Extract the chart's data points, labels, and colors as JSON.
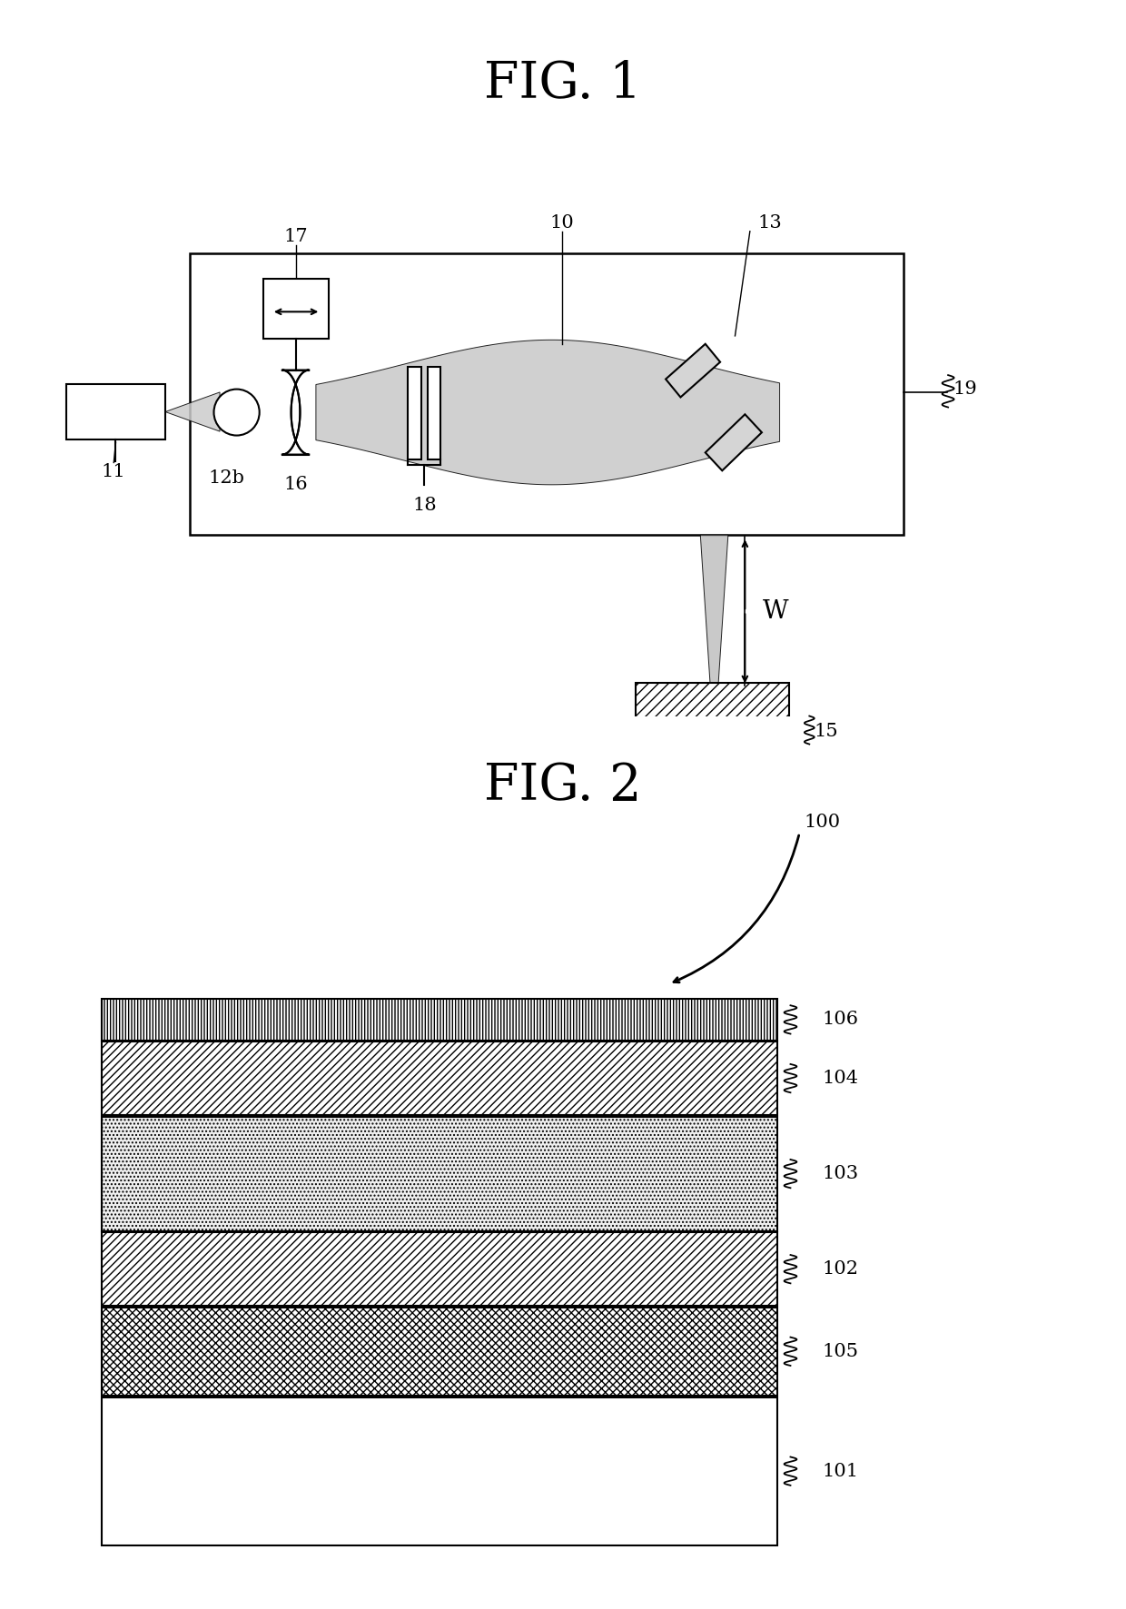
{
  "fig1_title": "FIG. 1",
  "fig2_title": "FIG. 2",
  "bg_color": "#ffffff",
  "lc": "#000000",
  "lw": 1.5
}
